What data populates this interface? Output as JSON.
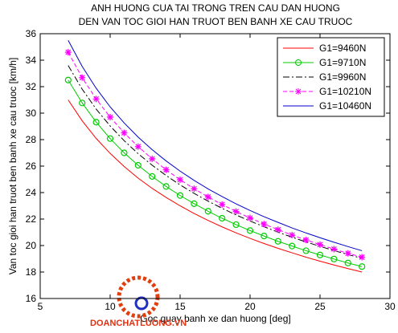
{
  "chart_data": {
    "type": "line",
    "title": [
      "ANH HUONG CUA TAI TRONG TREN CAU DAN HUONG",
      "DEN VAN TOC GIOI HAN TRUOT BEN BANH XE CAU TRUOC"
    ],
    "xlabel": "Goc quay banh xe dan huong [deg]",
    "ylabel": "Van toc gioi han truot ben banh xe cau truoc [km/h]",
    "watermark": "DOANCHATLUONG.VN",
    "xlim": [
      5,
      30
    ],
    "xticks": [
      5,
      10,
      15,
      20,
      25,
      30
    ],
    "ylim": [
      16,
      36
    ],
    "yticks": [
      16,
      18,
      20,
      22,
      24,
      26,
      28,
      30,
      32,
      34,
      36
    ],
    "grid": false,
    "legend": "top-right",
    "x": [
      7,
      8,
      9,
      10,
      11,
      12,
      13,
      14,
      15,
      16,
      17,
      18,
      19,
      20,
      21,
      22,
      23,
      24,
      25,
      26,
      27,
      28
    ],
    "series": [
      {
        "name": "G1=9460N",
        "color": "#ff0000",
        "marker": "none",
        "linestyle": "solid",
        "values": [
          31.0,
          29.42,
          28.09,
          26.96,
          25.97,
          25.09,
          24.32,
          23.63,
          23.0,
          22.42,
          21.9,
          21.41,
          20.96,
          20.54,
          20.15,
          19.79,
          19.45,
          19.12,
          18.82,
          18.53,
          18.26,
          18.0
        ]
      },
      {
        "name": "G1=9710N",
        "color": "#00cc00",
        "marker": "circle",
        "linestyle": "solid",
        "values": [
          32.5,
          30.77,
          29.32,
          28.08,
          27.0,
          26.06,
          25.22,
          24.46,
          23.78,
          23.16,
          22.59,
          22.06,
          21.58,
          21.13,
          20.72,
          20.32,
          19.96,
          19.61,
          19.29,
          18.98,
          18.68,
          18.41
        ]
      },
      {
        "name": "G1=9960N",
        "color": "#000000",
        "marker": "none",
        "linestyle": "dashdot",
        "values": [
          33.6,
          31.81,
          30.31,
          29.03,
          27.92,
          26.94,
          26.07,
          25.29,
          24.58,
          23.94,
          23.35,
          22.81,
          22.31,
          21.85,
          21.42,
          21.01,
          20.63,
          20.27,
          19.94,
          19.62,
          19.32,
          19.03
        ]
      },
      {
        "name": "G1=10210N",
        "color": "#ff00ff",
        "marker": "star",
        "linestyle": "dashed",
        "values": [
          34.6,
          32.68,
          31.07,
          29.7,
          28.51,
          27.47,
          26.55,
          25.72,
          24.97,
          24.29,
          23.67,
          23.1,
          22.57,
          22.08,
          21.62,
          21.2,
          20.79,
          20.42,
          20.07,
          19.73,
          19.41,
          19.12
        ]
      },
      {
        "name": "G1=10460N",
        "color": "#0000cc",
        "marker": "none",
        "linestyle": "solid",
        "values": [
          35.5,
          33.53,
          31.88,
          30.47,
          29.26,
          28.19,
          27.24,
          26.39,
          25.62,
          24.92,
          24.28,
          23.7,
          23.15,
          22.65,
          22.18,
          21.75,
          21.33,
          20.95,
          20.59,
          20.25,
          19.92,
          19.61
        ]
      }
    ]
  }
}
